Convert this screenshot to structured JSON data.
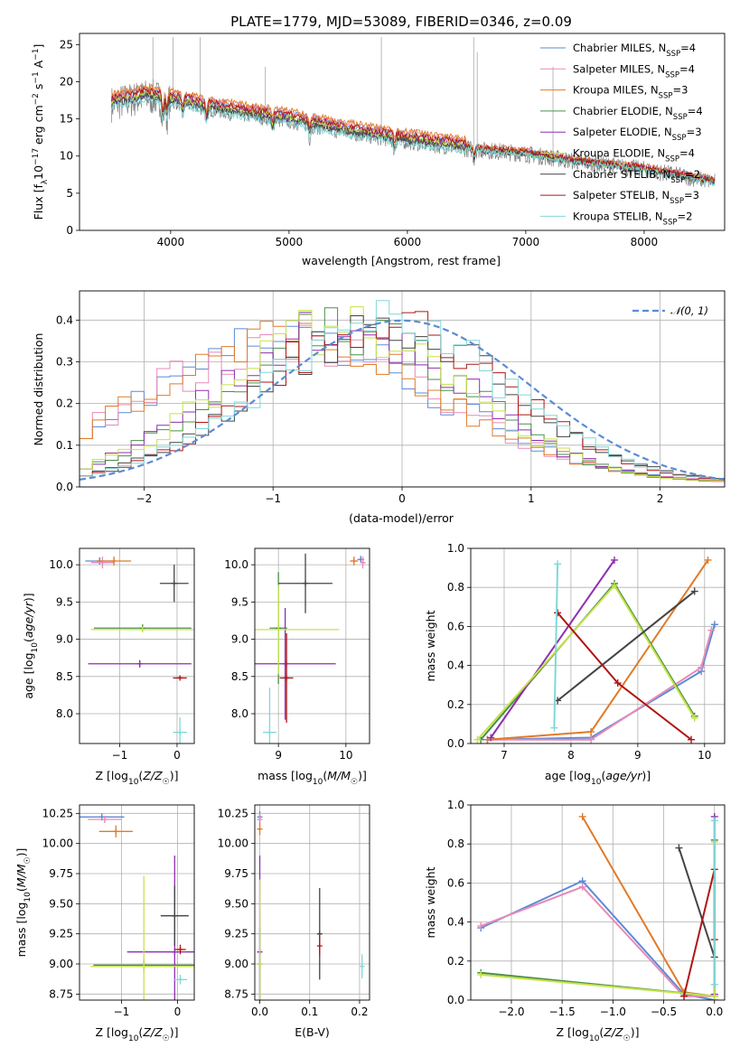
{
  "title": "PLATE=1779, MJD=53089, FIBERID=0346, z=0.09",
  "colors": {
    "Chabrier MILES": "#5b8bd6",
    "Salpeter MILES": "#e88ab8",
    "Kroupa MILES": "#e07b28",
    "Chabrier ELODIE": "#4a8f4a",
    "Salpeter ELODIE": "#8e2fb0",
    "Kroupa ELODIE": "#c6e24a",
    "Chabrier STELIB": "#444444",
    "Salpeter STELIB": "#b01515",
    "Kroupa STELIB": "#7fd8d8",
    "data": "#808080"
  },
  "chart_data": [
    {
      "type": "line",
      "title": "PLATE=1779, MJD=53089, FIBERID=0346, z=0.09",
      "xlabel": "wavelength [Angstrom, rest frame]",
      "ylabel": "Flux [f_λ 10^-17 erg cm^-2 s^-1 A^-1]",
      "xlim": [
        3230,
        8680
      ],
      "ylim": [
        0,
        26.5
      ],
      "xticks": [
        4000,
        5000,
        6000,
        7000,
        8000
      ],
      "yticks": [
        0,
        5,
        10,
        15,
        20,
        25
      ],
      "grid": false,
      "legend_position": "top-right",
      "legend": [
        {
          "name": "Chabrier MILES",
          "label": "Chabrier MILES, N",
          "n": "4"
        },
        {
          "name": "Salpeter MILES",
          "label": "Salpeter MILES, N",
          "n": "4"
        },
        {
          "name": "Kroupa MILES",
          "label": "Kroupa MILES, N",
          "n": "3"
        },
        {
          "name": "Chabrier ELODIE",
          "label": "Chabrier ELODIE, N",
          "n": "4"
        },
        {
          "name": "Salpeter ELODIE",
          "label": "Salpeter ELODIE, N",
          "n": "3"
        },
        {
          "name": "Kroupa ELODIE",
          "label": "Kroupa ELODIE, N",
          "n": "4"
        },
        {
          "name": "Chabrier STELIB",
          "label": "Chabrier STELIB, N",
          "n": "2"
        },
        {
          "name": "Salpeter STELIB",
          "label": "Salpeter STELIB, N",
          "n": "3"
        },
        {
          "name": "Kroupa STELIB",
          "label": "Kroupa STELIB, N",
          "n": "2"
        }
      ],
      "legend_sub": "SSP",
      "continuum": [
        [
          3500,
          17
        ],
        [
          3800,
          18
        ],
        [
          4000,
          17.5
        ],
        [
          4300,
          16.5
        ],
        [
          4600,
          15.7
        ],
        [
          5000,
          14.8
        ],
        [
          5500,
          13.2
        ],
        [
          6000,
          12
        ],
        [
          6500,
          11
        ],
        [
          7000,
          10.3
        ],
        [
          7400,
          9.3
        ],
        [
          8000,
          8.2
        ],
        [
          8600,
          6.5
        ]
      ]
    },
    {
      "type": "step",
      "xlabel": "(data-model)/error",
      "ylabel": "Normed distribution",
      "xlim": [
        -2.5,
        2.5
      ],
      "ylim": [
        0,
        0.47
      ],
      "xticks": [
        -2,
        -1,
        0,
        1,
        2
      ],
      "yticks": [
        0.0,
        0.1,
        0.2,
        0.3,
        0.4
      ],
      "grid": true,
      "legend_position": "top-right",
      "reference_label": "𝒩(0, 1)",
      "groups": [
        {
          "series": [
            "Chabrier MILES",
            "Salpeter MILES",
            "Kroupa MILES"
          ],
          "peak": -0.85,
          "width": 1.15,
          "amp": 0.34
        },
        {
          "series": [
            "Chabrier ELODIE",
            "Salpeter ELODIE",
            "Kroupa ELODIE"
          ],
          "peak": -0.45,
          "width": 0.95,
          "amp": 0.37
        },
        {
          "series": [
            "Chabrier STELIB",
            "Salpeter STELIB",
            "Kroupa STELIB"
          ],
          "peak": -0.15,
          "width": 0.95,
          "amp": 0.38
        }
      ]
    },
    {
      "type": "scatter",
      "xlabel": "Z [log10(Z/Z☉)]",
      "ylabel": "age  [log10(age/yr)]",
      "xlim": [
        -1.7,
        0.3
      ],
      "ylim": [
        7.6,
        10.22
      ],
      "xticks": [
        -1,
        0
      ],
      "yticks": [
        8.0,
        8.5,
        9.0,
        9.5,
        10.0
      ],
      "grid": true,
      "points": [
        {
          "series": "Chabrier MILES",
          "x": -1.35,
          "y": 10.05,
          "xerr": 0.25,
          "yerr": 0.05
        },
        {
          "series": "Salpeter MILES",
          "x": -1.3,
          "y": 10.03,
          "xerr": 0.2,
          "yerr": 0.08
        },
        {
          "series": "Kroupa MILES",
          "x": -1.1,
          "y": 10.05,
          "xerr": 0.3,
          "yerr": 0.06
        },
        {
          "series": "Chabrier ELODIE",
          "x": -0.6,
          "y": 9.15,
          "xerr": 0.85,
          "yerr": 0.05
        },
        {
          "series": "Salpeter ELODIE",
          "x": -0.65,
          "y": 8.67,
          "xerr": 0.9,
          "yerr": 0.05
        },
        {
          "series": "Kroupa ELODIE",
          "x": -0.6,
          "y": 9.13,
          "xerr": 0.9,
          "yerr": 0.04
        },
        {
          "series": "Chabrier STELIB",
          "x": -0.05,
          "y": 9.75,
          "xerr": 0.25,
          "yerr": 0.25
        },
        {
          "series": "Salpeter STELIB",
          "x": 0.05,
          "y": 8.48,
          "xerr": 0.12,
          "yerr": 0.02
        },
        {
          "series": "Kroupa STELIB",
          "x": 0.05,
          "y": 7.75,
          "xerr": 0.12,
          "yerr": 0.2
        }
      ]
    },
    {
      "type": "scatter",
      "xlabel": "mass [log10(M/M☉)]",
      "ylabel": "",
      "xlim": [
        8.65,
        10.35
      ],
      "ylim": [
        7.6,
        10.22
      ],
      "xticks": [
        9,
        10
      ],
      "yticks": [
        8.0,
        8.5,
        9.0,
        9.5,
        10.0
      ],
      "grid": true,
      "points": [
        {
          "series": "Chabrier MILES",
          "x": 10.22,
          "y": 10.07,
          "xerr": 0.05,
          "yerr": 0.05
        },
        {
          "series": "Salpeter MILES",
          "x": 10.25,
          "y": 10.03,
          "xerr": 0.04,
          "yerr": 0.08
        },
        {
          "series": "Kroupa MILES",
          "x": 10.12,
          "y": 10.05,
          "xerr": 0.06,
          "yerr": 0.06
        },
        {
          "series": "Chabrier ELODIE",
          "x": 9.0,
          "y": 9.15,
          "xerr": 0.13,
          "yerr": 0.75
        },
        {
          "series": "Salpeter ELODIE",
          "x": 9.1,
          "y": 8.67,
          "xerr": 0.75,
          "yerr": 0.75
        },
        {
          "series": "Kroupa ELODIE",
          "x": 9.0,
          "y": 9.13,
          "xerr": 0.9,
          "yerr": 0.6
        },
        {
          "series": "Chabrier STELIB",
          "x": 9.4,
          "y": 9.75,
          "xerr": 0.4,
          "yerr": 0.4
        },
        {
          "series": "Salpeter STELIB",
          "x": 9.12,
          "y": 8.48,
          "xerr": 0.1,
          "yerr": 0.6
        },
        {
          "series": "Kroupa STELIB",
          "x": 8.87,
          "y": 7.75,
          "xerr": 0.1,
          "yerr": 0.6
        }
      ]
    },
    {
      "type": "line",
      "xlabel": "age  [log10(age/yr)]",
      "ylabel": "mass weight",
      "xlim": [
        6.5,
        10.3
      ],
      "ylim": [
        0,
        1.0
      ],
      "xticks": [
        7,
        8,
        9,
        10
      ],
      "yticks": [
        0.0,
        0.2,
        0.4,
        0.6,
        0.8,
        1.0
      ],
      "grid": true,
      "series": [
        {
          "name": "Chabrier MILES",
          "points": [
            [
              6.75,
              0.02
            ],
            [
              8.3,
              0.03
            ],
            [
              9.95,
              0.37
            ],
            [
              10.15,
              0.61
            ]
          ]
        },
        {
          "name": "Salpeter MILES",
          "points": [
            [
              6.75,
              0.02
            ],
            [
              8.3,
              0.02
            ],
            [
              9.95,
              0.39
            ],
            [
              10.1,
              0.58
            ]
          ]
        },
        {
          "name": "Kroupa MILES",
          "points": [
            [
              6.75,
              0.02
            ],
            [
              8.3,
              0.06
            ],
            [
              10.05,
              0.94
            ]
          ]
        },
        {
          "name": "Chabrier ELODIE",
          "points": [
            [
              6.65,
              0.02
            ],
            [
              8.65,
              0.82
            ],
            [
              9.85,
              0.14
            ]
          ]
        },
        {
          "name": "Salpeter ELODIE",
          "points": [
            [
              6.8,
              0.03
            ],
            [
              8.65,
              0.94
            ]
          ]
        },
        {
          "name": "Kroupa ELODIE",
          "points": [
            [
              6.6,
              0.02
            ],
            [
              8.65,
              0.81
            ],
            [
              9.85,
              0.13
            ]
          ]
        },
        {
          "name": "Chabrier STELIB",
          "points": [
            [
              7.8,
              0.22
            ],
            [
              9.85,
              0.78
            ]
          ]
        },
        {
          "name": "Salpeter STELIB",
          "points": [
            [
              7.8,
              0.67
            ],
            [
              8.7,
              0.31
            ],
            [
              9.8,
              0.02
            ]
          ]
        },
        {
          "name": "Kroupa STELIB",
          "points": [
            [
              7.75,
              0.08
            ],
            [
              7.8,
              0.92
            ]
          ]
        }
      ]
    },
    {
      "type": "scatter",
      "xlabel": "Z [log10(Z/Z☉)]",
      "ylabel": "mass [log10(M/M☉)]",
      "xlim": [
        -1.75,
        0.3
      ],
      "ylim": [
        8.7,
        10.32
      ],
      "xticks": [
        -1,
        0
      ],
      "yticks": [
        8.75,
        9.0,
        9.25,
        9.5,
        9.75,
        10.0,
        10.25
      ],
      "grid": true,
      "points": [
        {
          "series": "Chabrier MILES",
          "x": -1.35,
          "y": 10.22,
          "xerr": 0.4,
          "yerr": 0.03
        },
        {
          "series": "Salpeter MILES",
          "x": -1.3,
          "y": 10.2,
          "xerr": 0.3,
          "yerr": 0.03
        },
        {
          "series": "Kroupa MILES",
          "x": -1.1,
          "y": 10.1,
          "xerr": 0.3,
          "yerr": 0.05
        },
        {
          "series": "Chabrier ELODIE",
          "x": -0.6,
          "y": 8.99,
          "xerr": 0.9,
          "yerr": 0.05
        },
        {
          "series": "Salpeter ELODIE",
          "x": -0.05,
          "y": 9.1,
          "xerr": 0.85,
          "yerr": 0.8
        },
        {
          "series": "Kroupa ELODIE",
          "x": -0.6,
          "y": 8.98,
          "xerr": 0.95,
          "yerr": 0.75
        },
        {
          "series": "Chabrier STELIB",
          "x": -0.05,
          "y": 9.4,
          "xerr": 0.25,
          "yerr": 0.25
        },
        {
          "series": "Salpeter STELIB",
          "x": 0.05,
          "y": 9.12,
          "xerr": 0.1,
          "yerr": 0.04
        },
        {
          "series": "Kroupa STELIB",
          "x": 0.05,
          "y": 8.87,
          "xerr": 0.12,
          "yerr": 0.04
        }
      ]
    },
    {
      "type": "scatter",
      "xlabel": "E(B-V)",
      "ylabel": "",
      "xlim": [
        -0.01,
        0.22
      ],
      "ylim": [
        8.7,
        10.32
      ],
      "xticks": [
        0.0,
        0.1,
        0.2
      ],
      "yticks": [
        8.75,
        9.0,
        9.25,
        9.5,
        9.75,
        10.0,
        10.25
      ],
      "grid": true,
      "points": [
        {
          "series": "Chabrier MILES",
          "x": 0.0,
          "y": 10.22,
          "xerr": 0,
          "yerr": 0.05
        },
        {
          "series": "Salpeter MILES",
          "x": 0.0,
          "y": 10.2,
          "xerr": 0,
          "yerr": 0.05
        },
        {
          "series": "Kroupa MILES",
          "x": 0.0,
          "y": 10.12,
          "xerr": 0,
          "yerr": 0.05
        },
        {
          "series": "Chabrier ELODIE",
          "x": 0.0,
          "y": 9.0,
          "xerr": 0,
          "yerr": 0.3
        },
        {
          "series": "Salpeter ELODIE",
          "x": 0.0,
          "y": 9.1,
          "xerr": 0,
          "yerr": 0.8
        },
        {
          "series": "Kroupa ELODIE",
          "x": 0.0,
          "y": 9.0,
          "xerr": 0,
          "yerr": 0.7
        },
        {
          "series": "Chabrier STELIB",
          "x": 0.12,
          "y": 9.25,
          "xerr": 0,
          "yerr": 0.38
        },
        {
          "series": "Salpeter STELIB",
          "x": 0.12,
          "y": 9.15,
          "xerr": 0,
          "yerr": 0.08
        },
        {
          "series": "Kroupa STELIB",
          "x": 0.205,
          "y": 8.98,
          "xerr": 0,
          "yerr": 0.1
        }
      ]
    },
    {
      "type": "line",
      "xlabel": "Z [log10(Z/Z☉)]",
      "ylabel": "mass weight",
      "xlim": [
        -2.4,
        0.1
      ],
      "ylim": [
        0,
        1.0
      ],
      "xticks": [
        -2.0,
        -1.5,
        -1.0,
        -0.5,
        0.0
      ],
      "yticks": [
        0.0,
        0.2,
        0.4,
        0.6,
        0.8,
        1.0
      ],
      "grid": true,
      "series": [
        {
          "name": "Chabrier MILES",
          "points": [
            [
              -2.3,
              0.37
            ],
            [
              -1.3,
              0.61
            ],
            [
              -0.3,
              0.03
            ],
            [
              0.0,
              0.0
            ]
          ]
        },
        {
          "name": "Salpeter MILES",
          "points": [
            [
              -2.3,
              0.38
            ],
            [
              -1.3,
              0.58
            ],
            [
              -0.3,
              0.02
            ],
            [
              0.0,
              0.02
            ]
          ]
        },
        {
          "name": "Kroupa MILES",
          "points": [
            [
              -1.3,
              0.94
            ],
            [
              -0.3,
              0.04
            ],
            [
              0.0,
              0.02
            ]
          ]
        },
        {
          "name": "Chabrier ELODIE",
          "points": [
            [
              -2.3,
              0.14
            ],
            [
              0.0,
              0.02
            ],
            [
              0.0,
              0.82
            ]
          ]
        },
        {
          "name": "Salpeter ELODIE",
          "points": [
            [
              0.0,
              0.03
            ],
            [
              0.0,
              0.94
            ]
          ]
        },
        {
          "name": "Kroupa ELODIE",
          "points": [
            [
              -2.3,
              0.13
            ],
            [
              0.0,
              0.02
            ],
            [
              0.0,
              0.81
            ]
          ]
        },
        {
          "name": "Chabrier STELIB",
          "points": [
            [
              -0.35,
              0.78
            ],
            [
              0.0,
              0.22
            ]
          ]
        },
        {
          "name": "Salpeter STELIB",
          "points": [
            [
              -0.3,
              0.02
            ],
            [
              0.0,
              0.67
            ],
            [
              0.0,
              0.31
            ]
          ]
        },
        {
          "name": "Kroupa STELIB",
          "points": [
            [
              0.0,
              0.08
            ],
            [
              0.0,
              0.92
            ]
          ]
        }
      ]
    }
  ]
}
